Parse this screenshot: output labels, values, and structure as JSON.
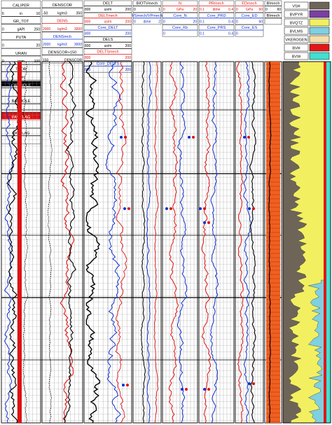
{
  "colors": {
    "red": "#e01010",
    "blue": "#1030d0",
    "black": "#000000",
    "orange": "#f06020",
    "vsh": "#6e6558",
    "bvpyr": "#7a3fa0",
    "bvqtz": "#f2f060",
    "bvlms": "#7fd0e0",
    "kerogen": "#f5dfa8",
    "bvh": "#e01818",
    "bvw": "#40e0d0",
    "payflag": "#e01010"
  },
  "headers": {
    "t1": [
      {
        "name": "CALIPER",
        "left": "6",
        "right": "16",
        "unit": "in",
        "color": "#000000"
      },
      {
        "name": "GR_TOT",
        "left": "0",
        "right": "250",
        "unit": "gAPI",
        "color": "#000000"
      },
      {
        "name": "PUTA",
        "left": "0",
        "right": "20",
        "unit": "",
        "color": "#000000"
      },
      {
        "name": "URAN",
        "left": "0",
        "right": "100",
        "unit": "ppm",
        "color": "#000000"
      },
      {
        "name": "THOR",
        "left": "",
        "right": "",
        "unit": "ppm",
        "color": "#000000"
      },
      {
        "name": "BAD HOLE",
        "left": "",
        "right": "",
        "unit": "",
        "color": "#000000"
      },
      {
        "name": "BADHOLE",
        "left": "",
        "right": "",
        "unit": "",
        "color": "#000000"
      },
      {
        "name": "PAY FLAG",
        "left": "",
        "right": "",
        "unit": "",
        "color": "#e01010"
      },
      {
        "name": "PAYFLAG",
        "left": "",
        "right": "",
        "unit": "",
        "color": "#000000"
      }
    ],
    "t2": [
      {
        "name": "DENSCOR",
        "left": "-50",
        "right": "350",
        "unit": "kg/m3",
        "color": "#000000"
      },
      {
        "name": "DENS",
        "left": "2000",
        "right": "3000",
        "unit": "kg/m3",
        "color": "#e01010"
      },
      {
        "name": "DENSmch",
        "left": "2000",
        "right": "3000",
        "unit": "kg/m3",
        "color": "#1030d0"
      },
      {
        "name": "DENSCOR>150",
        "left": "150",
        "right": "DENSCOR",
        "unit": "",
        "color": "#000000"
      }
    ],
    "t3": [
      {
        "name": "DELT",
        "left": "800",
        "right": "200",
        "unit": "us/m",
        "color": "#000000"
      },
      {
        "name": "DELTmech",
        "left": "800",
        "right": "200",
        "unit": "us/m",
        "color": "#e01010"
      },
      {
        "name": "Core_DELT",
        "left": "800",
        "right": "200",
        "unit": "",
        "color": "#1030d0"
      },
      {
        "name": "DELS",
        "left": "800",
        "right": "200",
        "unit": "us/m",
        "color": "#000000"
      },
      {
        "name": "DELTSmech",
        "left": "800",
        "right": "200",
        "unit": "",
        "color": "#e01010"
      },
      {
        "name": "Core_DELTS",
        "left": "800",
        "right": "200",
        "unit": "",
        "color": "#1030d0"
      }
    ],
    "t4": [
      {
        "name": "BIOTVmech",
        "left": "0",
        "right": "1",
        "unit": "",
        "color": "#000000"
      },
      {
        "name": "VSmech/VPmech",
        "left": "0",
        "right": "2",
        "unit": "dime",
        "color": "#1030d0"
      }
    ],
    "t5": [
      {
        "name": "N",
        "left": "0",
        "right": "20",
        "unit": "GPa",
        "color": "#e01010"
      },
      {
        "name": "Core_N",
        "left": "0",
        "right": "20",
        "unit": "",
        "color": "#1030d0"
      },
      {
        "name": "Core_Kb",
        "left": "0",
        "right": "",
        "unit": "",
        "color": "#1030d0"
      }
    ],
    "t6": [
      {
        "name": "PRmech",
        "left": "0.1",
        "right": "0.4",
        "unit": "dime",
        "color": "#e01010"
      },
      {
        "name": "Core_PRD",
        "left": "0.1",
        "right": "0.4",
        "unit": "",
        "color": "#1030d0"
      },
      {
        "name": "Core_PRS",
        "left": "0.1",
        "right": "0.4",
        "unit": "",
        "color": "#1030d0"
      }
    ],
    "t7": [
      {
        "name": "EDmech",
        "left": "0",
        "right": "60",
        "unit": "GPa",
        "color": "#e01010"
      },
      {
        "name": "Core_ED",
        "left": "0",
        "right": "60",
        "unit": "",
        "color": "#1030d0"
      },
      {
        "name": "Core_ES",
        "left": "0",
        "right": "",
        "unit": "",
        "color": "#1030d0"
      }
    ],
    "t8": [
      {
        "name": "BImech",
        "left": "0",
        "right": "60",
        "unit": "",
        "color": "#000000"
      },
      {
        "name": "BImech",
        "left": "",
        "right": "",
        "unit": "",
        "color": "#000000"
      }
    ],
    "legend": [
      "VSH",
      "BVPYR",
      "BVQTZ",
      "BVLMS",
      "VKEROGEN",
      "BVH",
      "BVW"
    ]
  }
}
